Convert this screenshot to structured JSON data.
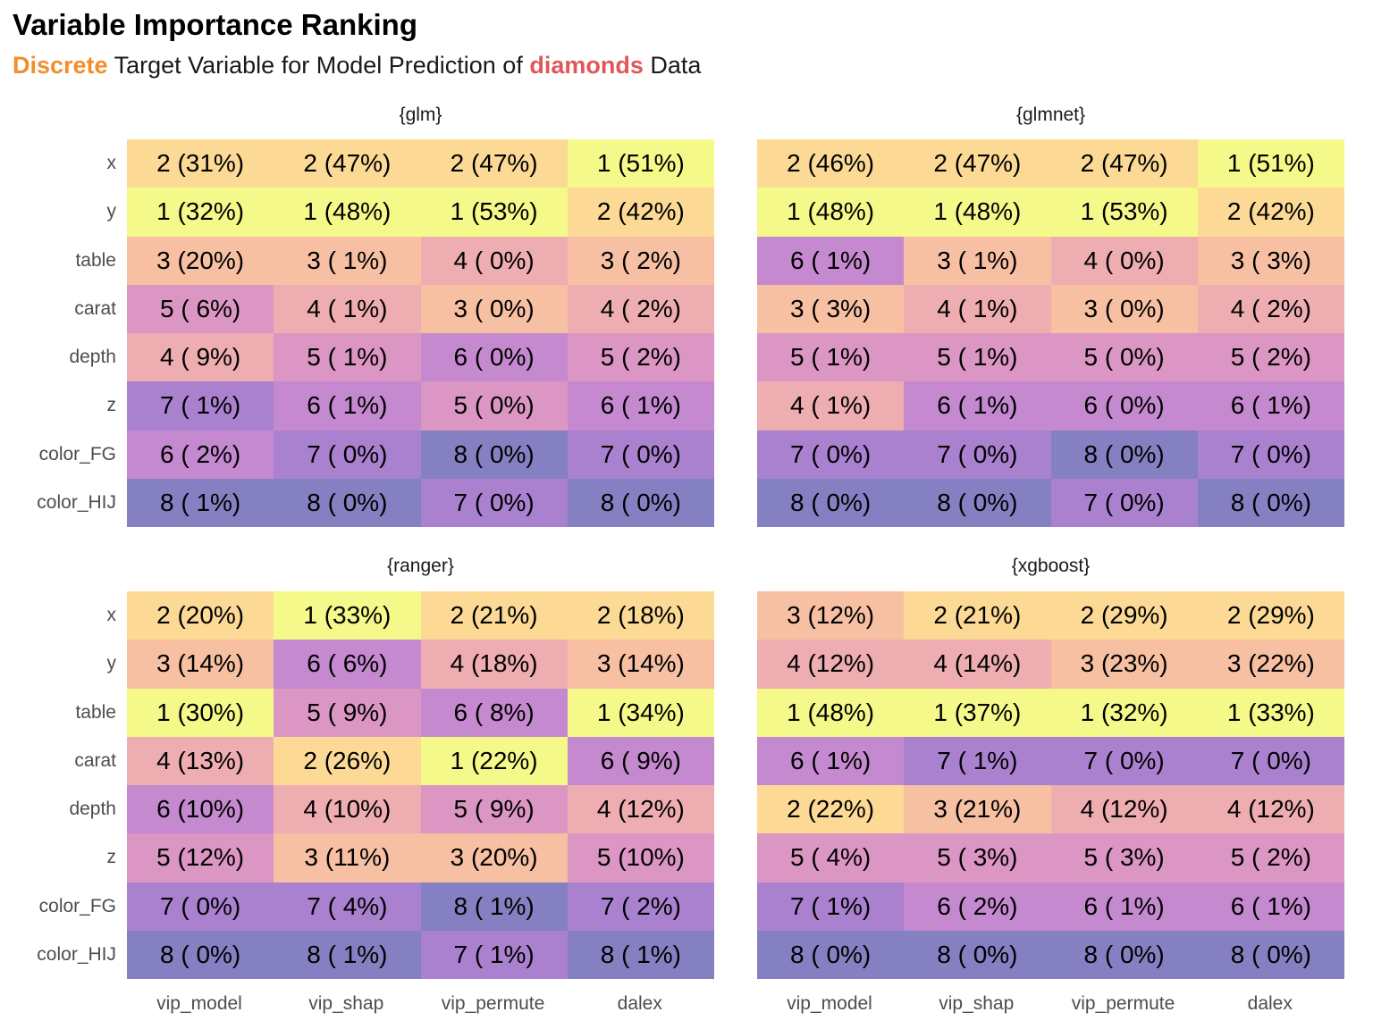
{
  "title": "Variable Importance Ranking",
  "subtitle": {
    "part1": "Discrete",
    "part2": " Target Variable for Model Prediction of ",
    "part3": "diamonds",
    "part4": " Data",
    "color1": "#f28e2b",
    "color3": "#e15759"
  },
  "rank_colors": {
    "1": "#f5f98a",
    "2": "#fcda96",
    "3": "#f7c0a3",
    "4": "#eeadb0",
    "5": "#dc96c4",
    "6": "#c589d0",
    "7": "#a981cf",
    "8": "#8580c2"
  },
  "chart_data": {
    "type": "heatmap",
    "title": "Variable Importance Ranking",
    "subtitle": "Discrete Target Variable for Model Prediction of diamonds Data",
    "columns": [
      "vip_model",
      "vip_shap",
      "vip_permute",
      "dalex"
    ],
    "rows": [
      "x",
      "y",
      "table",
      "carat",
      "depth",
      "z",
      "color_FG",
      "color_HIJ"
    ],
    "panels": [
      {
        "name": "{glm}",
        "cells": [
          [
            "2 (31%)",
            "2 (47%)",
            "2 (47%)",
            "1 (51%)"
          ],
          [
            "1 (32%)",
            "1 (48%)",
            "1 (53%)",
            "2 (42%)"
          ],
          [
            "3 (20%)",
            "3 ( 1%)",
            "4 ( 0%)",
            "3 ( 2%)"
          ],
          [
            "5 ( 6%)",
            "4 ( 1%)",
            "3 ( 0%)",
            "4 ( 2%)"
          ],
          [
            "4 ( 9%)",
            "5 ( 1%)",
            "6 ( 0%)",
            "5 ( 2%)"
          ],
          [
            "7 ( 1%)",
            "6 ( 1%)",
            "5 ( 0%)",
            "6 ( 1%)"
          ],
          [
            "6 ( 2%)",
            "7 ( 0%)",
            "8 ( 0%)",
            "7 ( 0%)"
          ],
          [
            "8 ( 1%)",
            "8 ( 0%)",
            "7 ( 0%)",
            "8 ( 0%)"
          ]
        ]
      },
      {
        "name": "{glmnet}",
        "cells": [
          [
            "2 (46%)",
            "2 (47%)",
            "2 (47%)",
            "1 (51%)"
          ],
          [
            "1 (48%)",
            "1 (48%)",
            "1 (53%)",
            "2 (42%)"
          ],
          [
            "6 ( 1%)",
            "3 ( 1%)",
            "4 ( 0%)",
            "3 ( 3%)"
          ],
          [
            "3 ( 3%)",
            "4 ( 1%)",
            "3 ( 0%)",
            "4 ( 2%)"
          ],
          [
            "5 ( 1%)",
            "5 ( 1%)",
            "5 ( 0%)",
            "5 ( 2%)"
          ],
          [
            "4 ( 1%)",
            "6 ( 1%)",
            "6 ( 0%)",
            "6 ( 1%)"
          ],
          [
            "7 ( 0%)",
            "7 ( 0%)",
            "8 ( 0%)",
            "7 ( 0%)"
          ],
          [
            "8 ( 0%)",
            "8 ( 0%)",
            "7 ( 0%)",
            "8 ( 0%)"
          ]
        ]
      },
      {
        "name": "{ranger}",
        "cells": [
          [
            "2 (20%)",
            "1 (33%)",
            "2 (21%)",
            "2 (18%)"
          ],
          [
            "3 (14%)",
            "6 ( 6%)",
            "4 (18%)",
            "3 (14%)"
          ],
          [
            "1 (30%)",
            "5 ( 9%)",
            "6 ( 8%)",
            "1 (34%)"
          ],
          [
            "4 (13%)",
            "2 (26%)",
            "1 (22%)",
            "6 ( 9%)"
          ],
          [
            "6 (10%)",
            "4 (10%)",
            "5 ( 9%)",
            "4 (12%)"
          ],
          [
            "5 (12%)",
            "3 (11%)",
            "3 (20%)",
            "5 (10%)"
          ],
          [
            "7 ( 0%)",
            "7 ( 4%)",
            "8 ( 1%)",
            "7 ( 2%)"
          ],
          [
            "8 ( 0%)",
            "8 ( 1%)",
            "7 ( 1%)",
            "8 ( 1%)"
          ]
        ]
      },
      {
        "name": "{xgboost}",
        "cells": [
          [
            "3 (12%)",
            "2 (21%)",
            "2 (29%)",
            "2 (29%)"
          ],
          [
            "4 (12%)",
            "4 (14%)",
            "3 (23%)",
            "3 (22%)"
          ],
          [
            "1 (48%)",
            "1 (37%)",
            "1 (32%)",
            "1 (33%)"
          ],
          [
            "6 ( 1%)",
            "7 ( 1%)",
            "7 ( 0%)",
            "7 ( 0%)"
          ],
          [
            "2 (22%)",
            "3 (21%)",
            "4 (12%)",
            "4 (12%)"
          ],
          [
            "5 ( 4%)",
            "5 ( 3%)",
            "5 ( 3%)",
            "5 ( 2%)"
          ],
          [
            "7 ( 1%)",
            "6 ( 2%)",
            "6 ( 1%)",
            "6 ( 1%)"
          ],
          [
            "8 ( 0%)",
            "8 ( 0%)",
            "8 ( 0%)",
            "8 ( 0%)"
          ]
        ]
      }
    ]
  }
}
